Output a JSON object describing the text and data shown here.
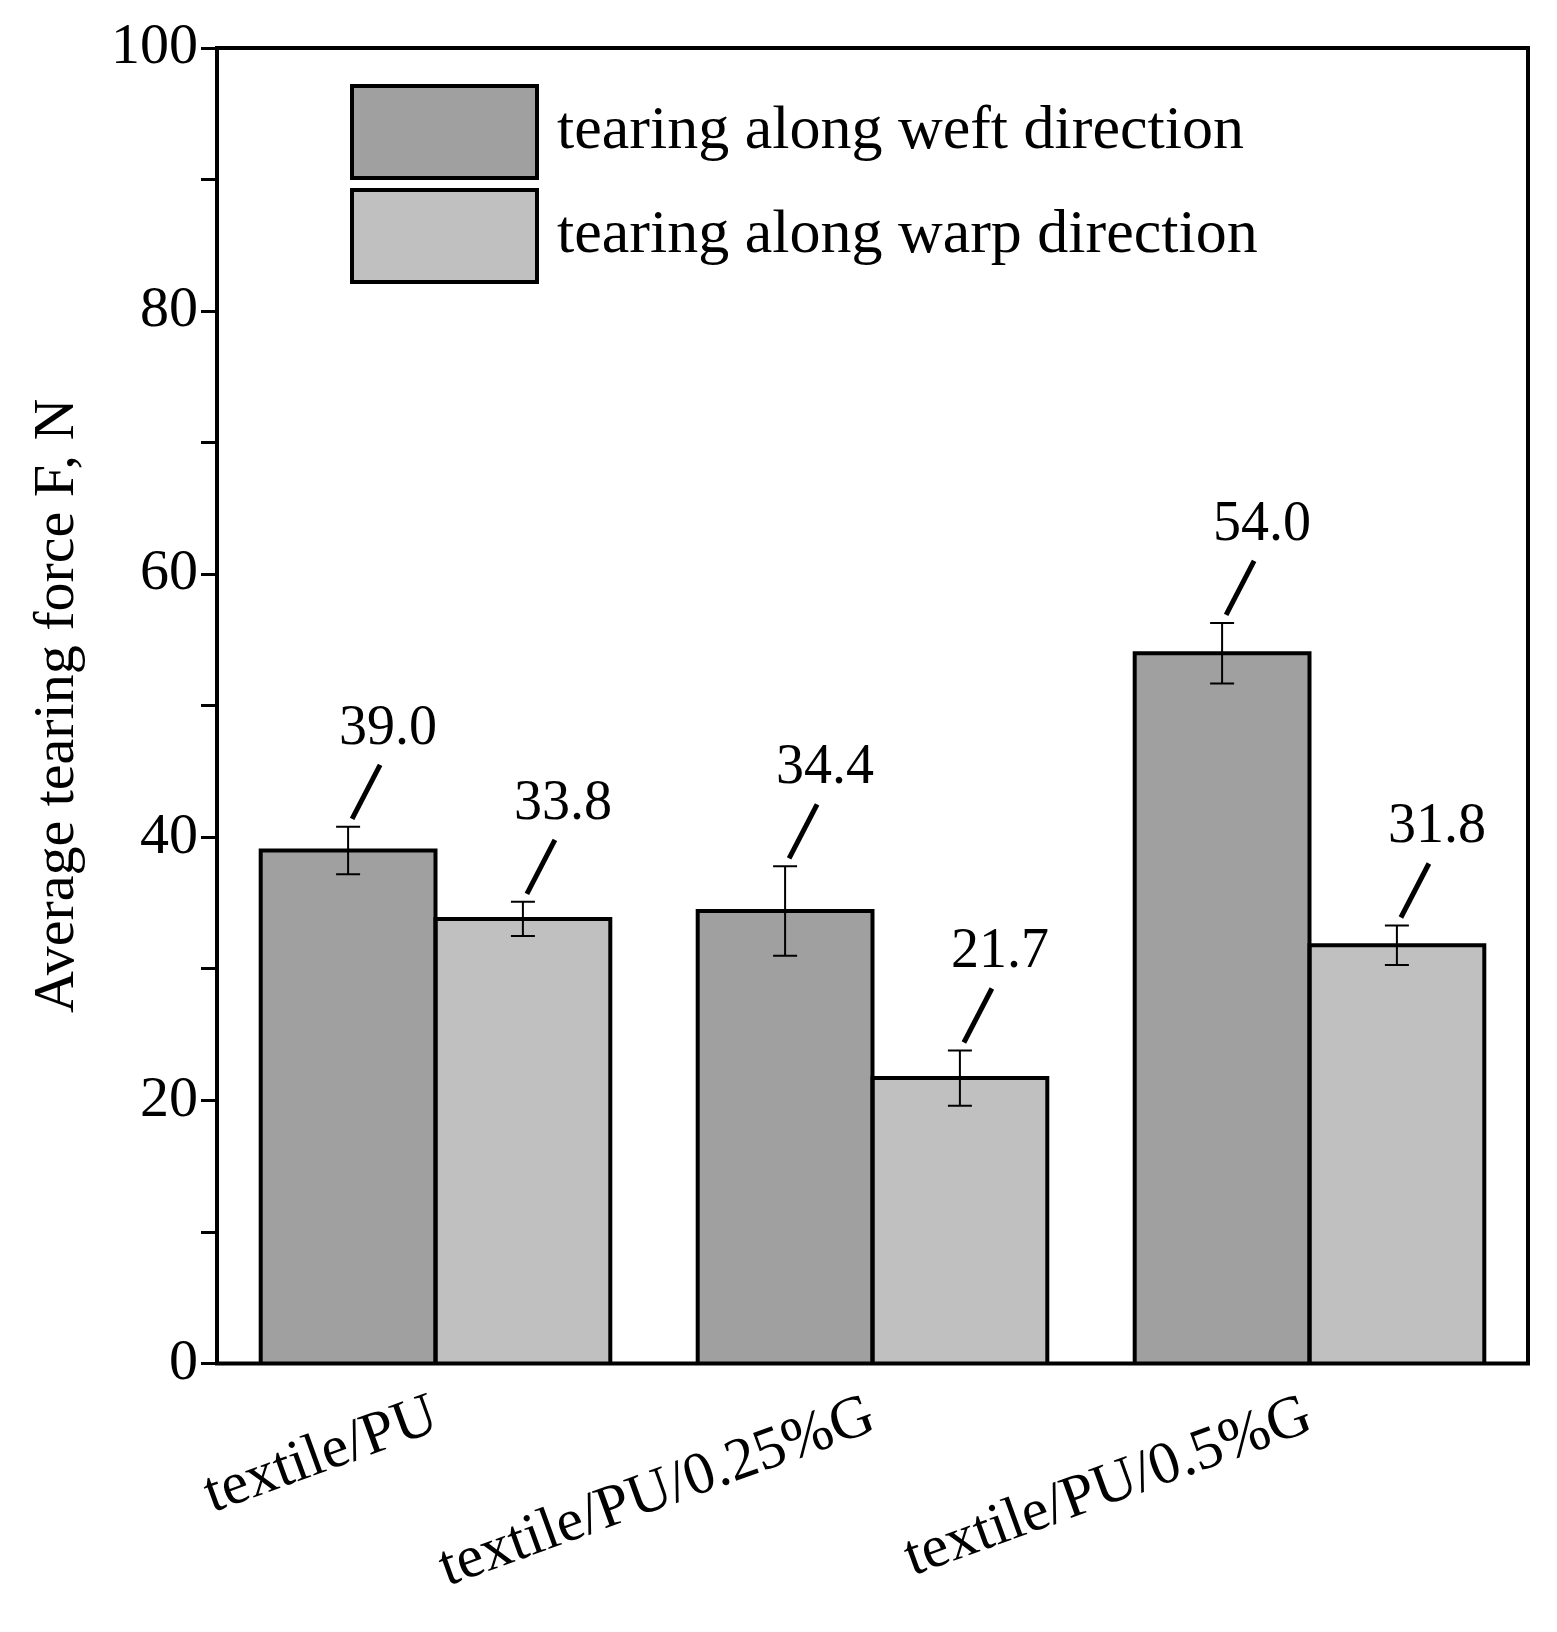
{
  "chart_data": {
    "type": "bar",
    "ylabel": "Average tearing force F, N",
    "categories": [
      "textile/PU",
      "textile/PU/0.25%G",
      "textile/PU/0.5%G"
    ],
    "series": [
      {
        "name": "tearing along weft direction",
        "color": "#a0a0a0",
        "values": [
          39.0,
          34.4,
          54.0
        ],
        "errors": [
          1.8,
          3.4,
          2.3
        ],
        "value_labels": [
          "39.0",
          "34.4",
          "54.0"
        ]
      },
      {
        "name": "tearing along warp direction",
        "color": "#c0c0c0",
        "values": [
          33.8,
          21.7,
          31.8
        ],
        "errors": [
          1.3,
          2.1,
          1.5
        ],
        "value_labels": [
          "33.8",
          "21.7",
          "31.8"
        ]
      }
    ],
    "ylim": [
      0,
      100
    ],
    "yticks": [
      0,
      {
        "value": 10,
        "label": null
      },
      20,
      {
        "value": 30,
        "label": null
      },
      40,
      {
        "value": 50,
        "label": null
      },
      60,
      {
        "value": 70,
        "label": null
      },
      80,
      {
        "value": 90,
        "label": null
      },
      100
    ],
    "grid": false,
    "legend": "top left"
  }
}
